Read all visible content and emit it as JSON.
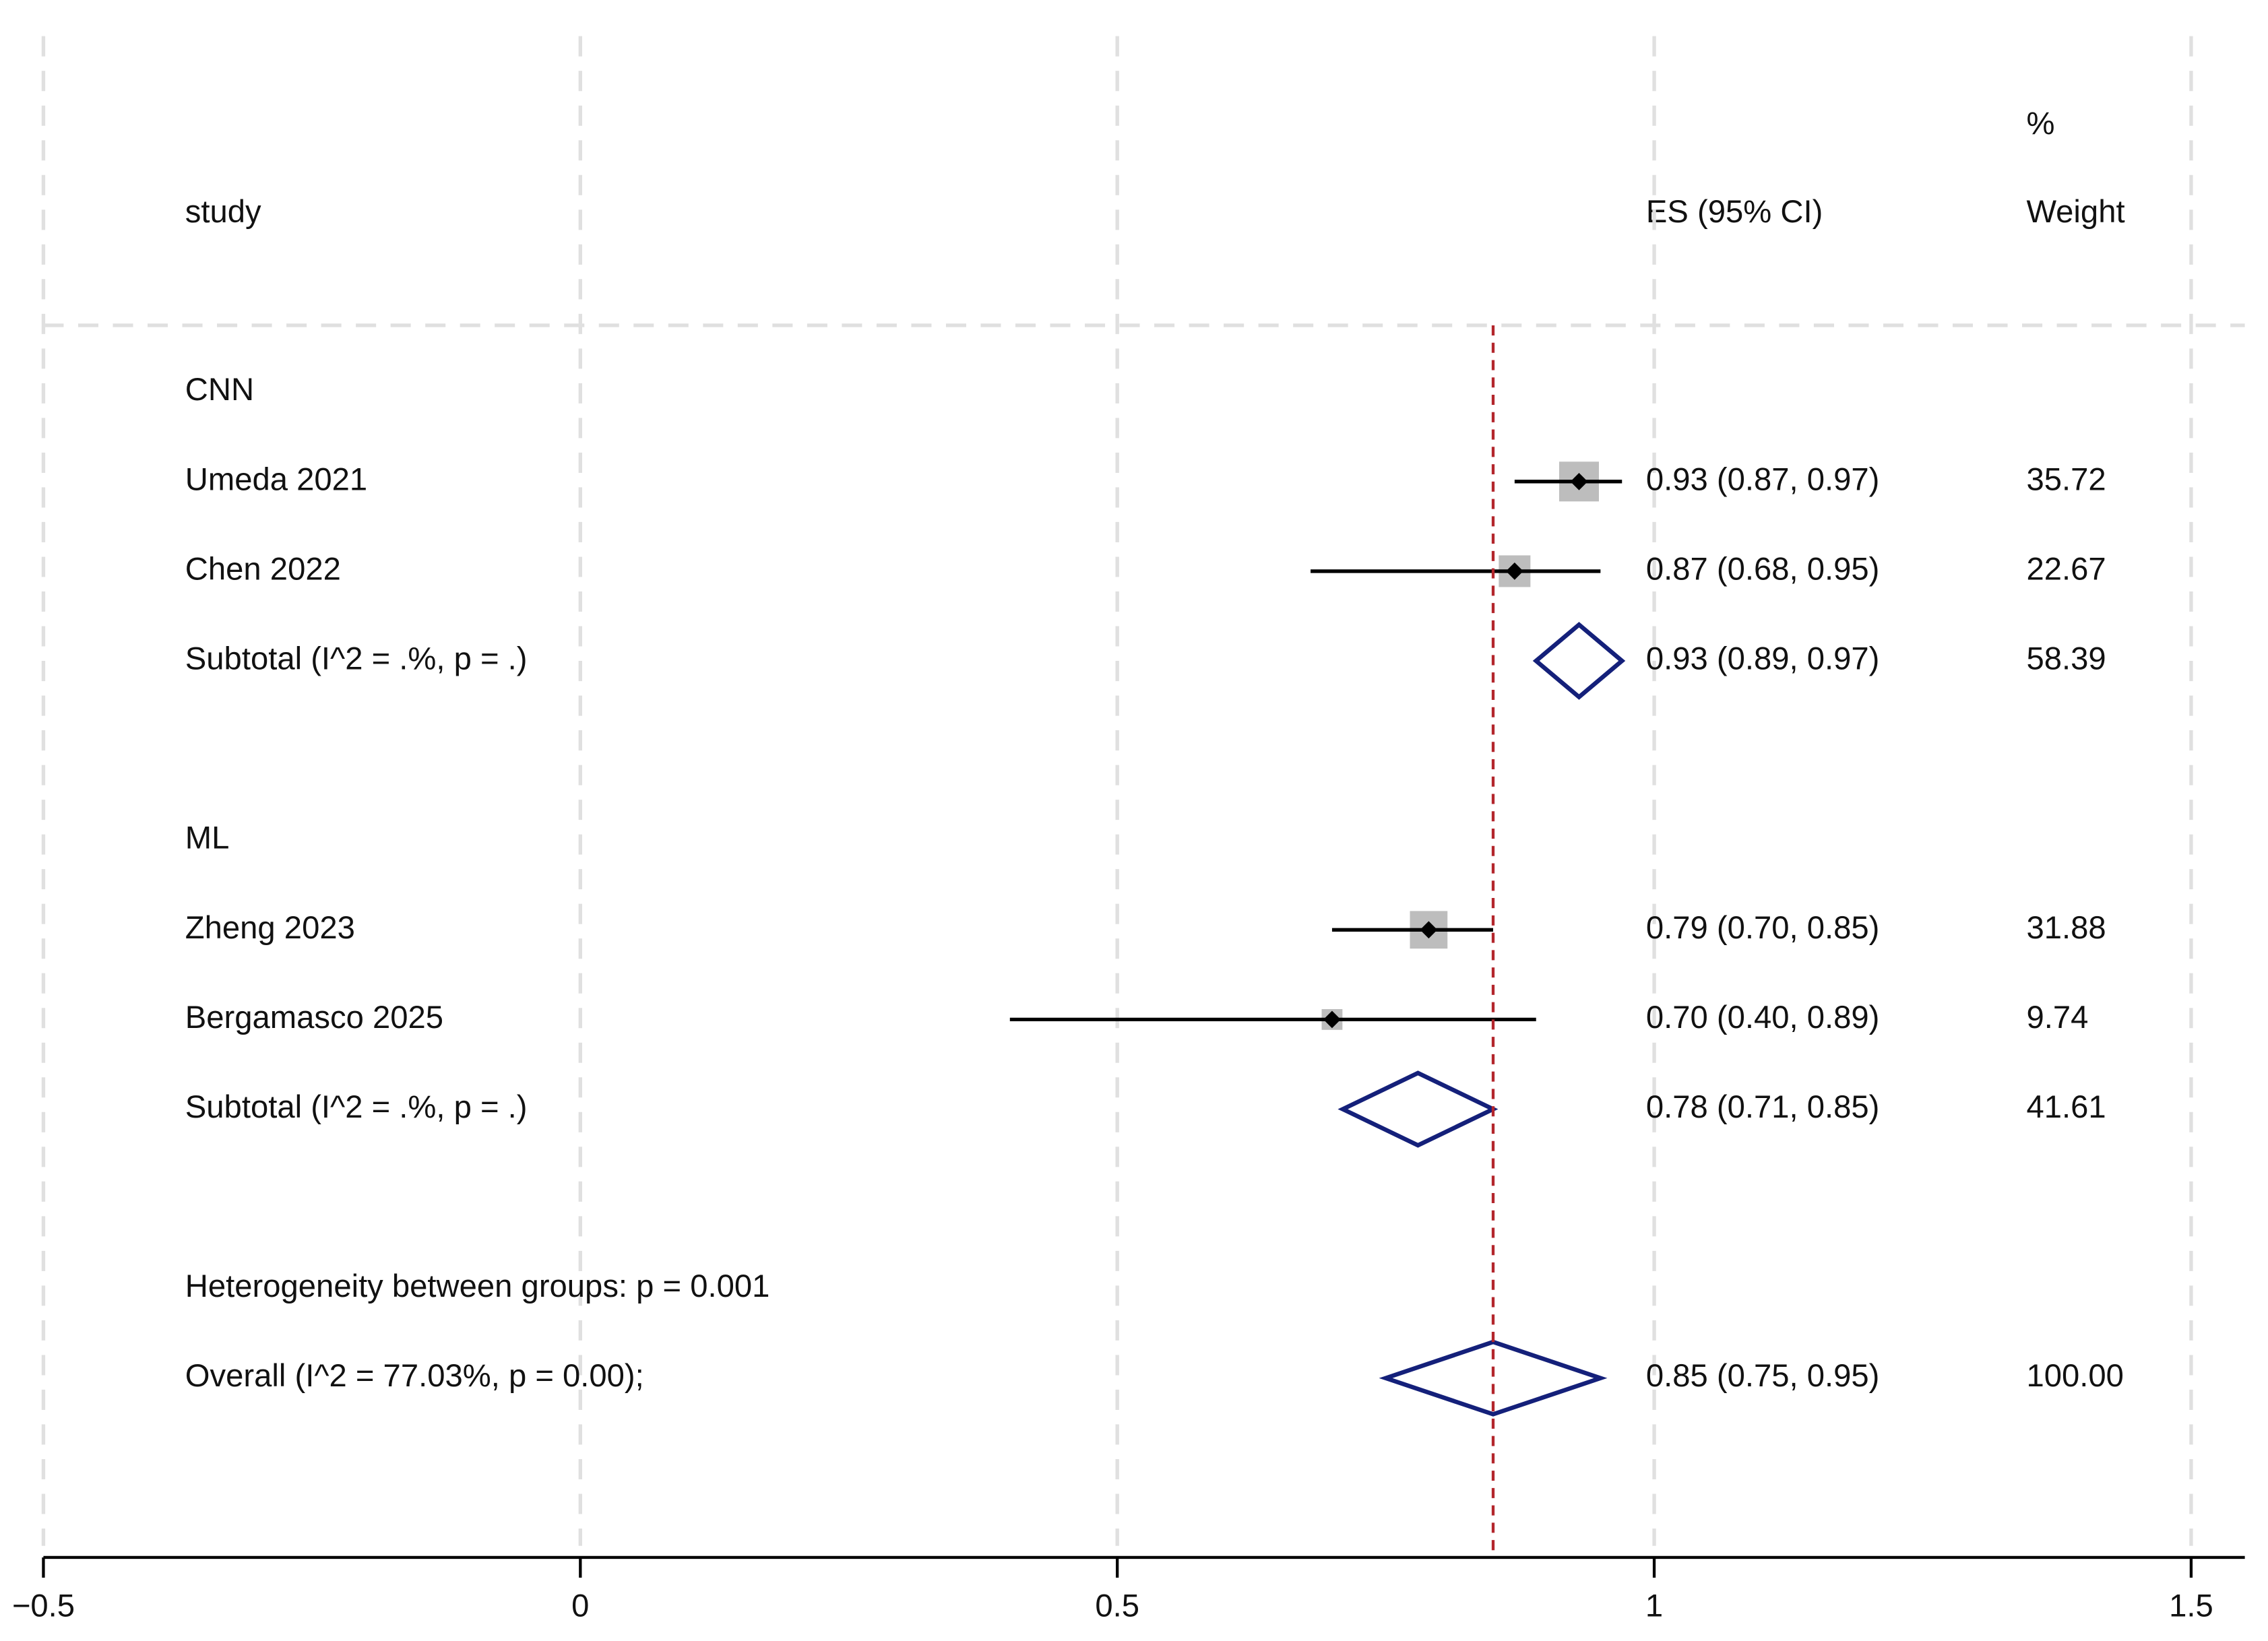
{
  "chart_data": {
    "type": "forest",
    "header": {
      "study": "study",
      "es": "ES (95% CI)",
      "weight_top": "%",
      "weight": "Weight"
    },
    "xlim": [
      -0.5,
      1.55
    ],
    "xticks": [
      {
        "value": -0.5,
        "label": "−0.5"
      },
      0,
      0.5,
      1,
      1.5
    ],
    "grid": true,
    "rows": [
      {
        "kind": "group",
        "label": "CNN"
      },
      {
        "kind": "study",
        "name": "Umeda 2021",
        "es": 0.93,
        "ci": [
          0.87,
          0.97
        ],
        "label": "0.93 (0.87, 0.97)",
        "weight": 35.72
      },
      {
        "kind": "study",
        "name": "Chen 2022",
        "es": 0.87,
        "ci": [
          0.68,
          0.95
        ],
        "label": "0.87 (0.68, 0.95)",
        "weight": 22.67
      },
      {
        "kind": "subtotal",
        "name": "Subtotal  (I^2 = .%, p = .)",
        "es": 0.93,
        "ci": [
          0.89,
          0.97
        ],
        "label": "0.93 (0.89, 0.97)",
        "weight": 58.39
      },
      {
        "kind": "group",
        "label": "ML"
      },
      {
        "kind": "study",
        "name": "Zheng 2023",
        "es": 0.79,
        "ci": [
          0.7,
          0.85
        ],
        "label": "0.79 (0.70, 0.85)",
        "weight": 31.88
      },
      {
        "kind": "study",
        "name": "Bergamasco 2025",
        "es": 0.7,
        "ci": [
          0.4,
          0.89
        ],
        "label": "0.70 (0.40, 0.89)",
        "weight": 9.74
      },
      {
        "kind": "subtotal",
        "name": "Subtotal  (I^2 = .%, p = .)",
        "es": 0.78,
        "ci": [
          0.71,
          0.85
        ],
        "label": "0.78 (0.71, 0.85)",
        "weight": 41.61
      },
      {
        "kind": "note",
        "label": "Heterogeneity between groups: p = 0.001"
      },
      {
        "kind": "overall",
        "name": "Overall  (I^2 = 77.03%, p = 0.00);",
        "es": 0.85,
        "ci": [
          0.75,
          0.95
        ],
        "label": "0.85 (0.75, 0.95)",
        "weight": {
          "value": 100,
          "label": "100.00"
        }
      }
    ],
    "colors": {
      "box": "#bdbdbd",
      "line": "#000000",
      "diamond": "#14207a",
      "ref": "#b3262c",
      "grid": "#e0e0e0"
    }
  }
}
